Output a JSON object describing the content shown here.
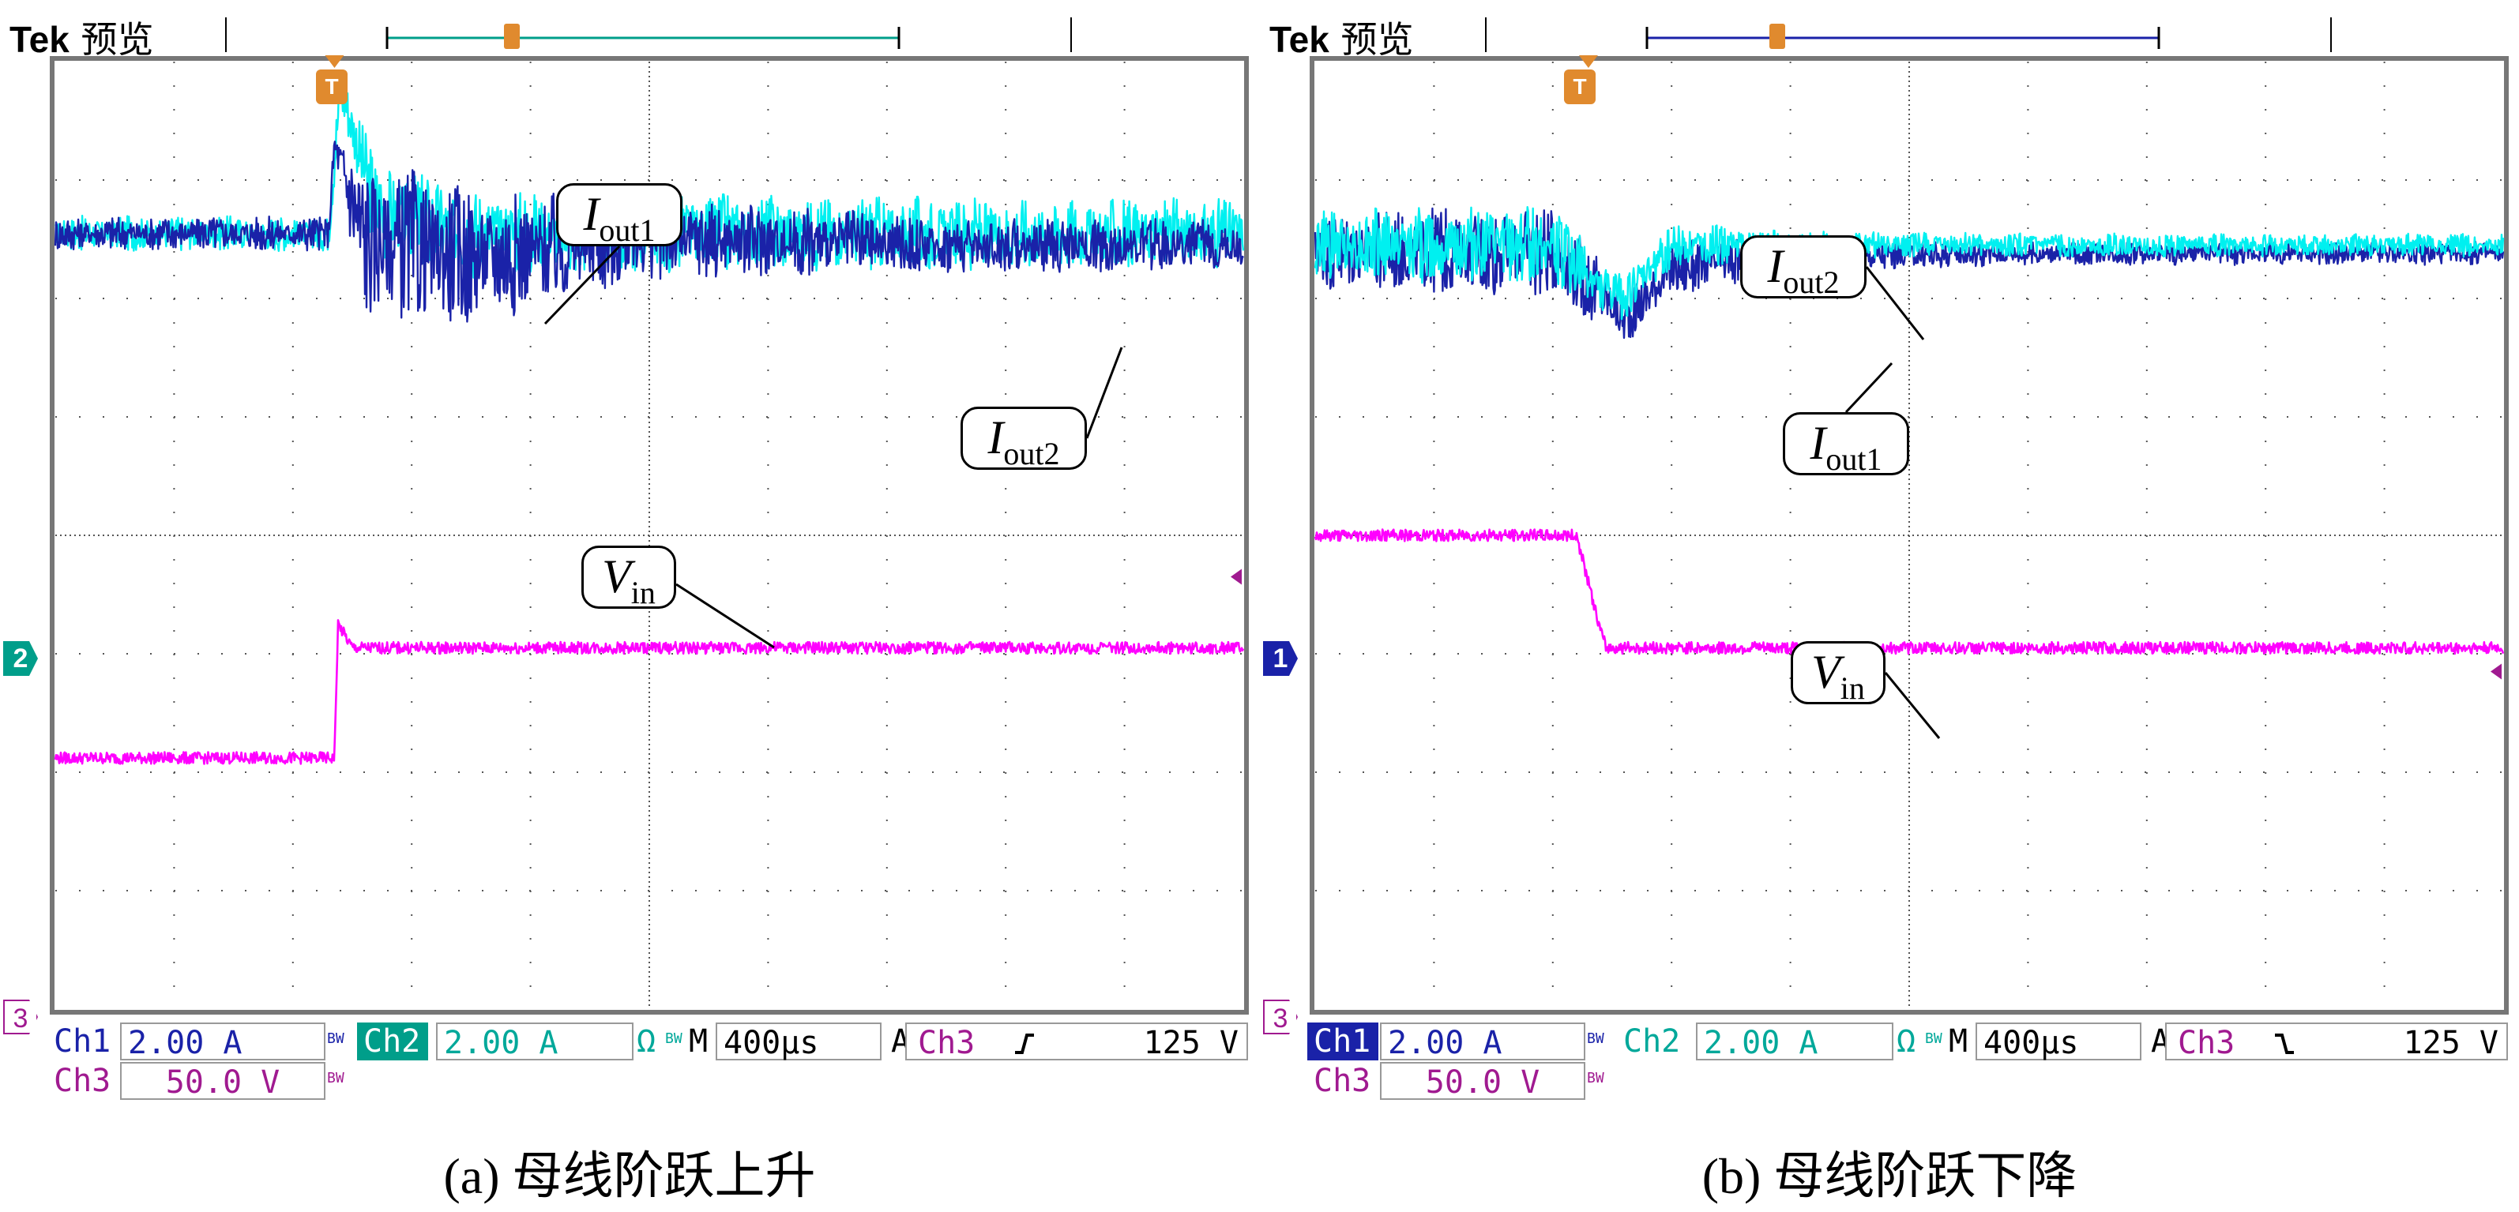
{
  "panels": [
    {
      "id": "a",
      "header": {
        "logo": "Tek",
        "mode": "预览"
      },
      "trigger_label": "T",
      "ch2_marker": "2",
      "ch3_marker": "3",
      "status": {
        "ch1_label": "Ch1",
        "ch1_scale": "2.00 A",
        "bw1": "BW",
        "ch2_label": "Ch2",
        "ch2_scale": "2.00 A",
        "ohm": "Ω",
        "bw2": "BW",
        "m_label": "M",
        "timebase": "400µs",
        "a_label": "A",
        "trig_src": "Ch3",
        "trig_slope": "rising",
        "trig_level": "125 V",
        "ch3_label": "Ch3",
        "ch3_scale": "50.0 V",
        "bw3": "BW"
      },
      "callouts": {
        "iout1": {
          "sym": "I",
          "sub": "out1"
        },
        "iout2": {
          "sym": "I",
          "sub": "out2"
        },
        "vin": {
          "sym": "V",
          "sub": "in"
        }
      },
      "caption": "(a) 母线阶跃上升"
    },
    {
      "id": "b",
      "header": {
        "logo": "Tek",
        "mode": "预览"
      },
      "trigger_label": "T",
      "ch1_marker": "1",
      "ch3_marker": "3",
      "status": {
        "ch1_label": "Ch1",
        "ch1_scale": "2.00 A",
        "bw1": "BW",
        "ch2_label": "Ch2",
        "ch2_scale": "2.00 A",
        "ohm": "Ω",
        "bw2": "BW",
        "m_label": "M",
        "timebase": "400µs",
        "a_label": "A",
        "trig_src": "Ch3",
        "trig_slope": "falling",
        "trig_level": "125 V",
        "ch3_label": "Ch3",
        "ch3_scale": "50.0 V",
        "bw3": "BW"
      },
      "callouts": {
        "iout2": {
          "sym": "I",
          "sub": "out2"
        },
        "iout1": {
          "sym": "I",
          "sub": "out1"
        },
        "vin": {
          "sym": "V",
          "sub": "in"
        }
      },
      "caption": "(b) 母线阶跃下降"
    }
  ],
  "colors": {
    "ch1": "#1a22a8",
    "ch2": "#00f0f0",
    "ch3": "#ff00ff",
    "ch2_marker": "#009e8a",
    "ch3_label": "#a01a90",
    "grid": "#555555"
  },
  "chart_data": [
    {
      "type": "line",
      "title": "(a) 母线阶跃上升",
      "x_unit": "div (400µs/div)",
      "x_range": [
        0,
        10
      ],
      "y_unit": "div",
      "y_range": [
        -4,
        4
      ],
      "trigger_x": 2.35,
      "series": [
        {
          "name": "Iout1",
          "channel": "Ch1",
          "scale": "2.00 A/div",
          "points": [
            [
              0,
              2.55
            ],
            [
              2.3,
              2.55
            ],
            [
              2.35,
              3.3
            ],
            [
              2.6,
              2.5
            ],
            [
              3.5,
              2.35
            ],
            [
              5,
              2.5
            ],
            [
              7.5,
              2.45
            ],
            [
              10,
              2.45
            ]
          ],
          "ripple_div": [
            0.15,
            0.15,
            0.2,
            0.7,
            0.6,
            0.35,
            0.25,
            0.22
          ]
        },
        {
          "name": "Iout2",
          "channel": "Ch2",
          "scale": "2.00 A/div",
          "points": [
            [
              0,
              2.55
            ],
            [
              2.3,
              2.55
            ],
            [
              2.4,
              3.8
            ],
            [
              2.7,
              2.75
            ],
            [
              3.5,
              2.55
            ],
            [
              5,
              2.55
            ],
            [
              7.5,
              2.55
            ],
            [
              10,
              2.55
            ]
          ],
          "ripple_div": [
            0.15,
            0.15,
            0.3,
            0.45,
            0.4,
            0.35,
            0.32,
            0.3
          ]
        },
        {
          "name": "Vin",
          "channel": "Ch3",
          "scale": "50.0 V/div",
          "points": [
            [
              0,
              -1.88
            ],
            [
              2.35,
              -1.88
            ],
            [
              2.38,
              -0.75
            ],
            [
              2.5,
              -0.95
            ],
            [
              4,
              -0.95
            ],
            [
              10,
              -0.95
            ]
          ]
        }
      ]
    },
    {
      "type": "line",
      "title": "(b) 母线阶跃下降",
      "x_unit": "div (400µs/div)",
      "x_range": [
        0,
        10
      ],
      "y_unit": "div",
      "y_range": [
        -4,
        4
      ],
      "trigger_x": 2.3,
      "series": [
        {
          "name": "Iout1",
          "channel": "Ch1",
          "scale": "2.00 A/div",
          "points": [
            [
              0,
              2.4
            ],
            [
              2.0,
              2.4
            ],
            [
              2.45,
              2.0
            ],
            [
              2.6,
              1.8
            ],
            [
              3.0,
              2.25
            ],
            [
              4.0,
              2.35
            ],
            [
              6,
              2.38
            ],
            [
              10,
              2.38
            ]
          ],
          "ripple_div": [
            0.35,
            0.4,
            0.3,
            0.2,
            0.25,
            0.15,
            0.1,
            0.1
          ]
        },
        {
          "name": "Iout2",
          "channel": "Ch2",
          "scale": "2.00 A/div",
          "points": [
            [
              0,
              2.45
            ],
            [
              2.0,
              2.45
            ],
            [
              2.45,
              2.05
            ],
            [
              2.6,
              2.0
            ],
            [
              3.0,
              2.45
            ],
            [
              4.0,
              2.45
            ],
            [
              6,
              2.45
            ],
            [
              10,
              2.45
            ]
          ],
          "ripple_div": [
            0.3,
            0.35,
            0.25,
            0.2,
            0.2,
            0.12,
            0.1,
            0.1
          ]
        },
        {
          "name": "Vin",
          "channel": "Ch3",
          "scale": "50.0 V/div",
          "points": [
            [
              0,
              0.0
            ],
            [
              2.2,
              0.0
            ],
            [
              2.4,
              -0.8
            ],
            [
              2.45,
              -0.95
            ],
            [
              10,
              -0.95
            ]
          ]
        }
      ]
    }
  ]
}
